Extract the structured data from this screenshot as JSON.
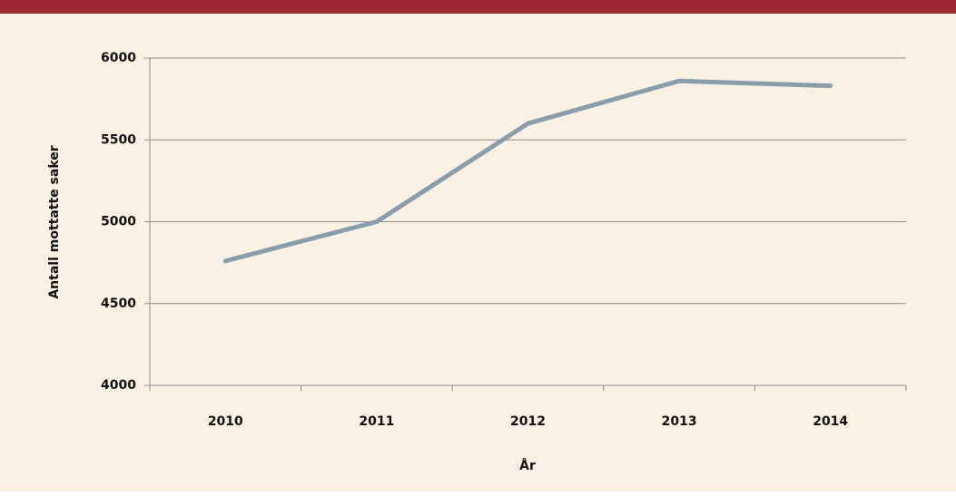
{
  "chart_data": {
    "type": "line",
    "x_label": "År",
    "y_label": "Antall mottatte saker",
    "categories": [
      "2010",
      "2011",
      "2012",
      "2013",
      "2014"
    ],
    "series": [
      {
        "name": "Antall mottatte saker",
        "color": "#8a9daa",
        "values": [
          4760,
          5000,
          5600,
          5860,
          5830
        ]
      }
    ],
    "ylim": [
      4000,
      6000
    ],
    "yticks": [
      4000,
      4500,
      5000,
      5500,
      6000
    ],
    "grid": true
  }
}
